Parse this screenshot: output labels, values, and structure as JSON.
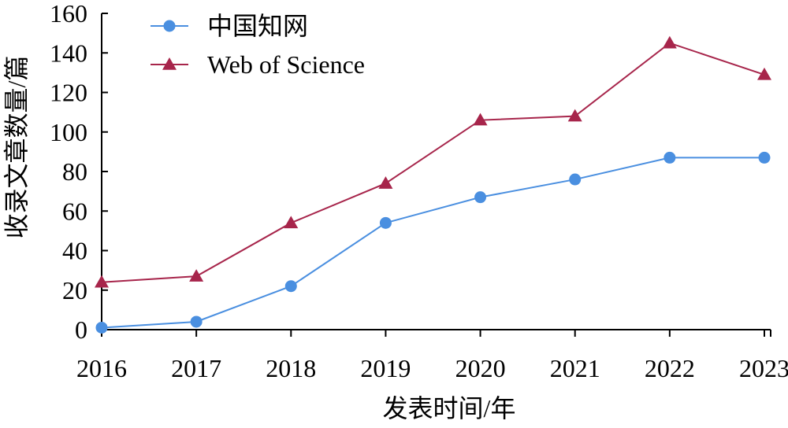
{
  "chart_data": {
    "type": "line",
    "title": "",
    "xlabel": "发表时间/年",
    "ylabel": "收录文章数量/篇",
    "categories": [
      "2016",
      "2017",
      "2018",
      "2019",
      "2020",
      "2021",
      "2022",
      "2023"
    ],
    "ylim": [
      0,
      160
    ],
    "yticks": [
      "0",
      "20",
      "40",
      "60",
      "80",
      "100",
      "120",
      "140",
      "160"
    ],
    "grid": false,
    "legend_position": "top-left",
    "series": [
      {
        "name": "中国知网",
        "marker": "circle",
        "color": "#4A8FE0",
        "values": [
          1,
          4,
          22,
          54,
          67,
          76,
          87,
          87
        ]
      },
      {
        "name": "Web of Science",
        "marker": "triangle",
        "color": "#A7254B",
        "values": [
          24,
          27,
          54,
          74,
          106,
          108,
          145,
          129
        ]
      }
    ]
  }
}
